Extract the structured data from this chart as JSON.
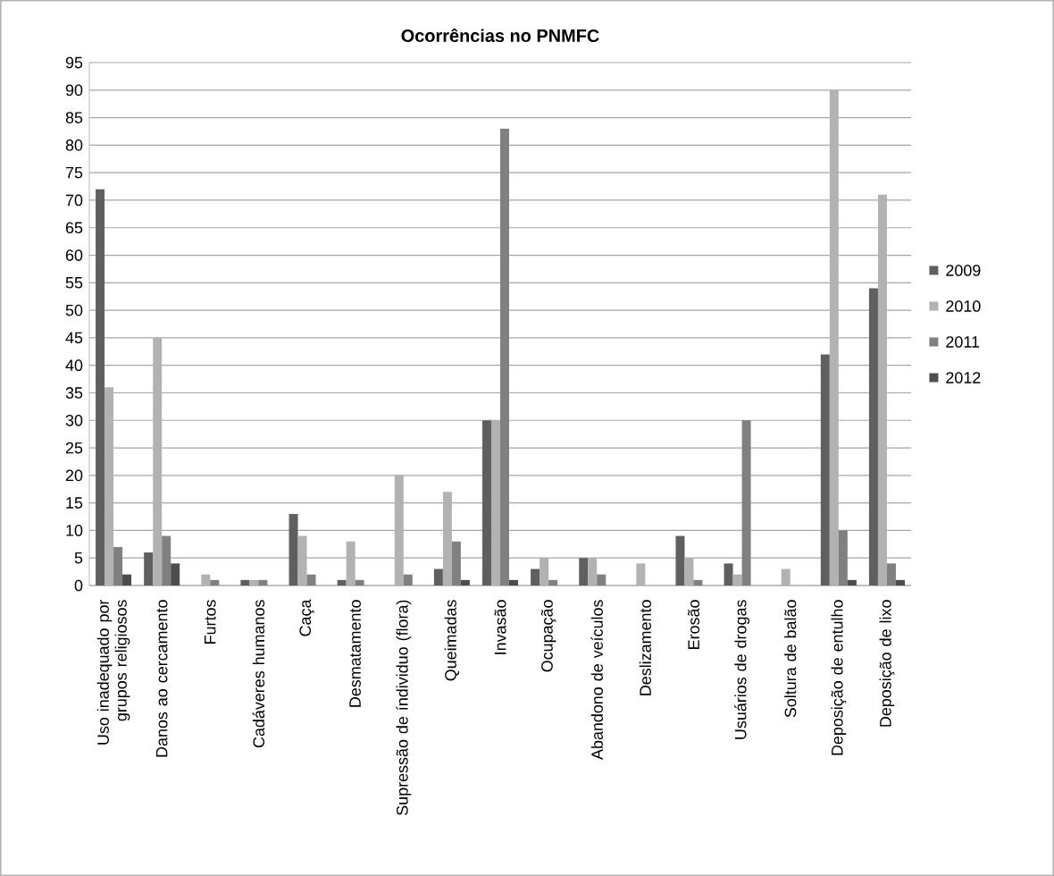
{
  "chart_data": {
    "type": "bar",
    "title": "Ocorrências no PNMFC",
    "categories": [
      "Uso inadequado por grupos religiosos",
      "Danos ao cercamento",
      "Furtos",
      "Cadáveres humanos",
      "Caça",
      "Desmatamento",
      "Supressão de índividuo (flora)",
      "Queimadas",
      "Invasão",
      "Ocupação",
      "Abandono de veículos",
      "Deslizamento",
      "Erosão",
      "Usuários de drogas",
      "Soltura de balão",
      "Deposição de entulho",
      "Deposição de lixo"
    ],
    "series": [
      {
        "name": "2009",
        "color": "#5f5f5f",
        "values": [
          72,
          6,
          0,
          1,
          13,
          1,
          0,
          3,
          30,
          3,
          5,
          0,
          9,
          4,
          0,
          42,
          54
        ]
      },
      {
        "name": "2010",
        "color": "#b2b2b2",
        "values": [
          36,
          45,
          2,
          1,
          9,
          8,
          20,
          17,
          30,
          5,
          5,
          4,
          5,
          2,
          3,
          90,
          71
        ]
      },
      {
        "name": "2011",
        "color": "#808080",
        "values": [
          7,
          9,
          1,
          1,
          2,
          1,
          2,
          8,
          83,
          1,
          2,
          0,
          1,
          30,
          0,
          10,
          4
        ]
      },
      {
        "name": "2012",
        "color": "#4d4d4d",
        "values": [
          2,
          4,
          0,
          0,
          0,
          0,
          0,
          1,
          1,
          0,
          0,
          0,
          0,
          0,
          0,
          1,
          1
        ]
      }
    ],
    "ylim": [
      0,
      95
    ],
    "yticks": [
      0,
      5,
      10,
      15,
      20,
      25,
      30,
      35,
      40,
      45,
      50,
      55,
      60,
      65,
      70,
      75,
      80,
      85,
      90,
      95
    ],
    "grid": "y",
    "legend": "right"
  }
}
